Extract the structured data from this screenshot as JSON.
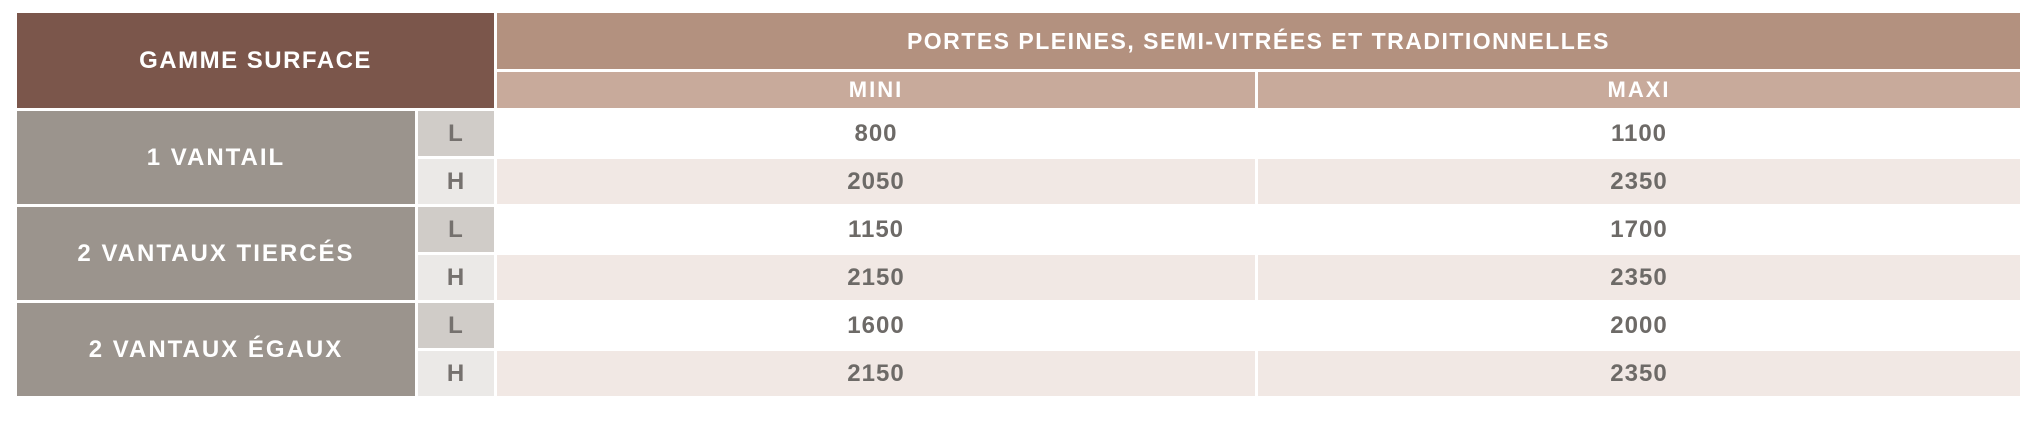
{
  "table": {
    "corner_header": "GAMME SURFACE",
    "main_header": "PORTES PLEINES, SEMI-VITRÉES ET TRADITIONNELLES",
    "col_mini": "MINI",
    "col_maxi": "MAXI",
    "rows": [
      {
        "label": "1 VANTAIL",
        "sub": [
          {
            "dim": "L",
            "mini": "800",
            "maxi": "1100"
          },
          {
            "dim": "H",
            "mini": "2050",
            "maxi": "2350"
          }
        ]
      },
      {
        "label": "2 VANTAUX TIERCÉS",
        "sub": [
          {
            "dim": "L",
            "mini": "1150",
            "maxi": "1700"
          },
          {
            "dim": "H",
            "mini": "2150",
            "maxi": "2350"
          }
        ]
      },
      {
        "label": "2 VANTAUX ÉGAUX",
        "sub": [
          {
            "dim": "L",
            "mini": "1600",
            "maxi": "2000"
          },
          {
            "dim": "H",
            "mini": "2150",
            "maxi": "2350"
          }
        ]
      }
    ]
  },
  "colors": {
    "corner_bg": "#7b564b",
    "main_header_bg": "#b3917f",
    "sub_header_bg": "#c8aa9b",
    "row_label_bg": "#9b948d",
    "dim_l_bg": "#d0ccc8",
    "dim_h_bg": "#ebe9e7",
    "row_l_bg": "#ffffff",
    "row_h_bg": "#f1e8e4",
    "value_text": "#6d6a67",
    "header_text": "#ffffff"
  }
}
